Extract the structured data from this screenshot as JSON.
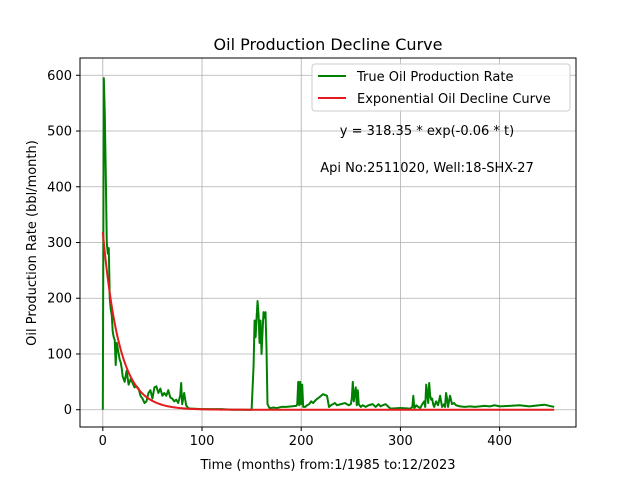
{
  "chart_data": {
    "type": "line",
    "title": "Oil Production Decline Curve",
    "xlabel": "Time (months) from:1/1985 to:12/2023",
    "ylabel": "Oil Production Rate (bbl/month)",
    "xlim": [
      -23,
      477
    ],
    "ylim": [
      -31,
      631
    ],
    "xticks": [
      0,
      100,
      200,
      300,
      400
    ],
    "yticks": [
      0,
      100,
      200,
      300,
      400,
      500,
      600
    ],
    "xtick_labels": [
      "0",
      "100",
      "200",
      "300",
      "400"
    ],
    "ytick_labels": [
      "0",
      "100",
      "200",
      "300",
      "400",
      "500",
      "600"
    ],
    "grid": true,
    "legend_position": "top-right",
    "annotations": [
      "y = 318.35 * exp(-0.06 * t)",
      "Api No:2511020, Well:18-SHX-27"
    ],
    "series": [
      {
        "name": "True Oil Production Rate",
        "color": "#008000",
        "x": [
          0,
          1,
          2,
          3,
          4,
          5,
          6,
          7,
          8,
          9,
          10,
          11,
          12,
          13,
          14,
          15,
          16,
          17,
          18,
          19,
          20,
          22,
          24,
          26,
          28,
          30,
          32,
          34,
          36,
          38,
          40,
          42,
          44,
          46,
          48,
          50,
          52,
          54,
          56,
          58,
          60,
          62,
          64,
          66,
          68,
          70,
          72,
          74,
          76,
          78,
          79,
          80,
          82,
          84,
          86,
          88,
          90,
          100,
          110,
          120,
          130,
          140,
          150,
          152,
          153,
          154,
          155,
          156,
          157,
          158,
          159,
          160,
          161,
          162,
          163,
          164,
          165,
          166,
          168,
          170,
          172,
          175,
          180,
          185,
          190,
          195,
          196,
          197,
          198,
          199,
          200,
          201,
          202,
          204,
          206,
          208,
          210,
          212,
          215,
          218,
          222,
          226,
          228,
          230,
          232,
          234,
          236,
          240,
          244,
          248,
          250,
          251,
          252,
          253,
          254,
          255,
          256,
          257,
          258,
          260,
          262,
          265,
          268,
          272,
          275,
          278,
          280,
          282,
          285,
          290,
          300,
          310,
          312,
          313,
          314,
          315,
          316,
          318,
          320,
          322,
          324,
          325,
          326,
          327,
          328,
          329,
          330,
          331,
          332,
          333,
          334,
          336,
          338,
          340,
          342,
          344,
          345,
          346,
          347,
          348,
          350,
          352,
          354,
          356,
          360,
          365,
          370,
          375,
          380,
          385,
          390,
          395,
          400,
          410,
          420,
          430,
          440,
          445,
          450,
          455
        ],
        "y": [
          0,
          595,
          530,
          420,
          300,
          280,
          290,
          200,
          180,
          170,
          140,
          130,
          125,
          80,
          120,
          110,
          100,
          90,
          85,
          75,
          60,
          50,
          70,
          45,
          55,
          48,
          40,
          42,
          38,
          25,
          20,
          12,
          15,
          30,
          35,
          20,
          40,
          42,
          30,
          38,
          25,
          30,
          25,
          35,
          22,
          20,
          15,
          18,
          12,
          25,
          48,
          10,
          30,
          8,
          3,
          2,
          2,
          1,
          1,
          1,
          0,
          0,
          0,
          80,
          160,
          130,
          165,
          195,
          170,
          120,
          160,
          100,
          140,
          175,
          165,
          175,
          110,
          10,
          3,
          3,
          4,
          3,
          5,
          5,
          6,
          7,
          10,
          50,
          8,
          50,
          10,
          45,
          5,
          5,
          8,
          10,
          15,
          12,
          18,
          22,
          28,
          25,
          5,
          8,
          10,
          12,
          8,
          10,
          12,
          8,
          10,
          20,
          50,
          15,
          30,
          40,
          8,
          35,
          10,
          5,
          8,
          5,
          8,
          10,
          5,
          10,
          6,
          8,
          10,
          2,
          3,
          2,
          5,
          25,
          3,
          5,
          8,
          5,
          3,
          10,
          15,
          5,
          45,
          30,
          12,
          48,
          25,
          18,
          20,
          10,
          5,
          15,
          8,
          25,
          5,
          10,
          5,
          30,
          20,
          5,
          25,
          10,
          12,
          8,
          6,
          5,
          6,
          5,
          6,
          7,
          6,
          8,
          6,
          7,
          8,
          6,
          8,
          9,
          7,
          5
        ]
      },
      {
        "name": "Exponential Oil Decline Curve",
        "color": "#e41a1c",
        "fn": {
          "a": 318.35,
          "b": -0.06,
          "x_start": 0,
          "x_end": 455
        }
      }
    ]
  }
}
